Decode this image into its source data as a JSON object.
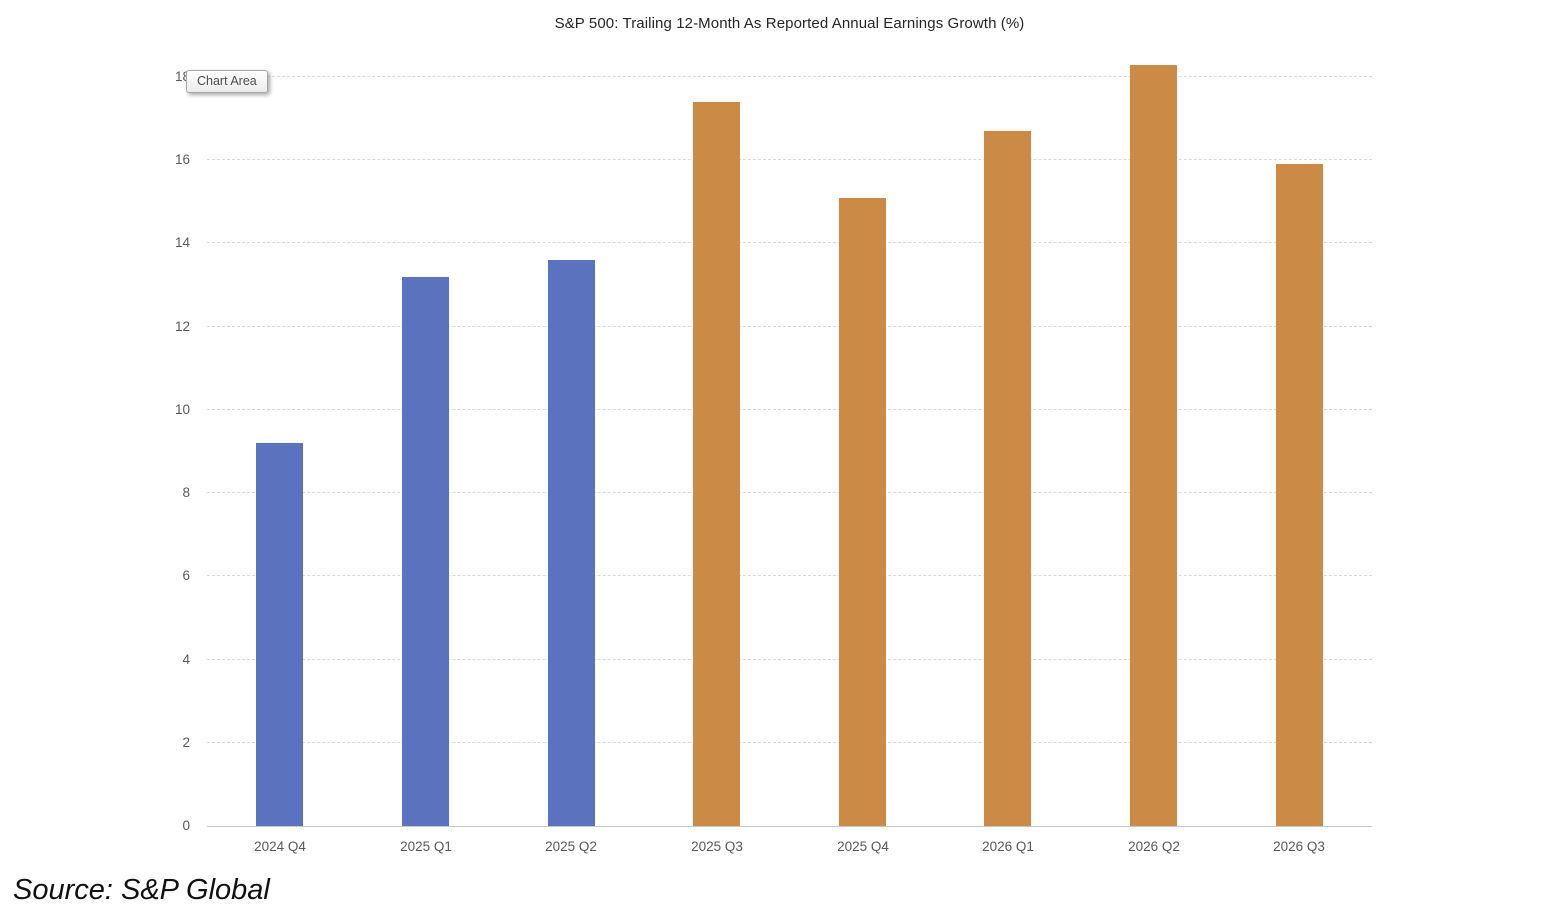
{
  "title": "S&P 500: Trailing 12-Month As Reported Annual Earnings Growth (%)",
  "tooltip": {
    "label": "Chart Area"
  },
  "source": "Source: S&P Global",
  "colors": {
    "blue_bar": "#5B73BE",
    "orange_bar": "#CB8A46",
    "gridline": "#D9D9D9",
    "axis_line": "#C6C6C6",
    "axis_text": "#595959",
    "title_text": "#262626"
  },
  "chart_data": {
    "type": "bar",
    "title": "S&P 500: Trailing 12-Month As Reported Annual Earnings Growth (%)",
    "categories": [
      "2024 Q4",
      "2025 Q1",
      "2025 Q2",
      "2025 Q3",
      "2025 Q4",
      "2026 Q1",
      "2026 Q2",
      "2026 Q3"
    ],
    "values": [
      9.2,
      13.2,
      13.6,
      17.4,
      15.1,
      16.7,
      18.3,
      15.9
    ],
    "bar_colors": [
      "#5B73BE",
      "#5B73BE",
      "#5B73BE",
      "#CB8A46",
      "#CB8A46",
      "#CB8A46",
      "#CB8A46",
      "#CB8A46"
    ],
    "xlabel": "",
    "ylabel": "",
    "ylim": [
      0,
      18.5
    ],
    "yticks": [
      0,
      2,
      4,
      6,
      8,
      10,
      12,
      14,
      16,
      18
    ],
    "grid": "horizontal-dashed",
    "legend": "none"
  }
}
